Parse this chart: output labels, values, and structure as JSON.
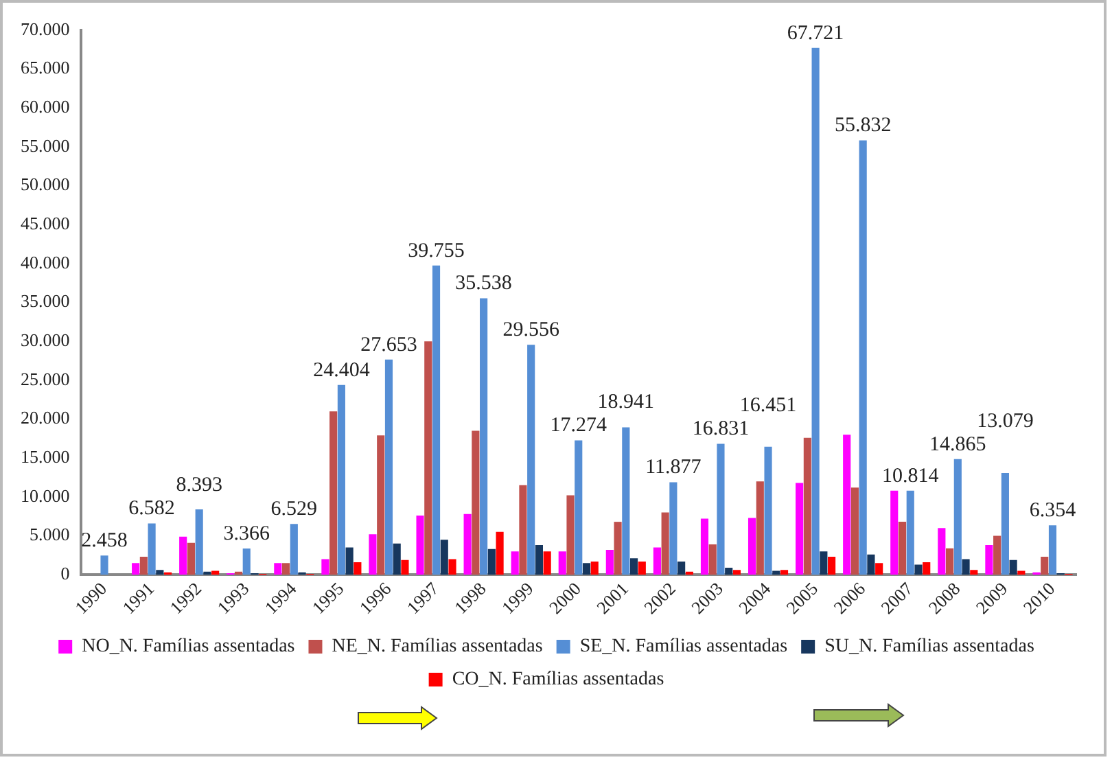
{
  "chart_data": {
    "type": "bar",
    "categories": [
      "1990",
      "1991",
      "1992",
      "1993",
      "1994",
      "1995",
      "1996",
      "1997",
      "1998",
      "1999",
      "2000",
      "2001",
      "2002",
      "2003",
      "2004",
      "2005",
      "2006",
      "2007",
      "2008",
      "2009",
      "2010"
    ],
    "series": [
      {
        "name": "NO_N. Famílias assentadas",
        "color": "#ff00ff",
        "values": [
          0,
          1500,
          4900,
          200,
          1500,
          2000,
          5200,
          7600,
          7800,
          3000,
          3000,
          3200,
          3500,
          7200,
          7300,
          11800,
          18000,
          10800,
          6000,
          3800,
          300
        ]
      },
      {
        "name": "NE_N. Famílias assentadas",
        "color": "#c0504d",
        "values": [
          0,
          2300,
          4100,
          400,
          1500,
          21000,
          17900,
          30000,
          18500,
          11500,
          10200,
          6800,
          8000,
          3900,
          12000,
          17600,
          11200,
          6800,
          3400,
          5000,
          2300
        ]
      },
      {
        "name": "SE_N. Famílias assentadas",
        "color": "#558ed5",
        "values": [
          2458,
          6582,
          8393,
          3366,
          6529,
          24404,
          27653,
          39755,
          35538,
          29556,
          17274,
          18941,
          11877,
          16831,
          16451,
          67721,
          55832,
          10814,
          14865,
          13079,
          6354
        ],
        "value_labels": [
          "2.458",
          "6.582",
          "8.393",
          "3.366",
          "6.529",
          "24.404",
          "27.653",
          "39.755",
          "35.538",
          "29.556",
          "17.274",
          "18.941",
          "11.877",
          "16.831",
          "16.451",
          "67.721",
          "55.832",
          "10.814",
          "14.865",
          "13.079",
          "6.354"
        ]
      },
      {
        "name": "SU_N. Famílias assentadas",
        "color": "#17375e",
        "values": [
          0,
          600,
          400,
          200,
          300,
          3500,
          4000,
          4500,
          3300,
          3800,
          1500,
          2100,
          1700,
          900,
          500,
          3000,
          2600,
          1300,
          2000,
          1900,
          200
        ]
      },
      {
        "name": "CO_N. Famílias assentadas",
        "color": "#ff0000",
        "values": [
          0,
          300,
          500,
          100,
          100,
          1600,
          1900,
          2000,
          5500,
          3000,
          1700,
          1700,
          400,
          600,
          600,
          2300,
          1500,
          1600,
          600,
          500,
          100
        ]
      }
    ],
    "ylim": [
      0,
      70000
    ],
    "yticks": [
      {
        "value": 0,
        "label": "0"
      },
      {
        "value": 5000,
        "label": "5.000"
      },
      {
        "value": 10000,
        "label": "10.000"
      },
      {
        "value": 15000,
        "label": "15.000"
      },
      {
        "value": 20000,
        "label": "20.000"
      },
      {
        "value": 25000,
        "label": "25.000"
      },
      {
        "value": 30000,
        "label": "30.000"
      },
      {
        "value": 35000,
        "label": "35.000"
      },
      {
        "value": 40000,
        "label": "40.000"
      },
      {
        "value": 45000,
        "label": "45.000"
      },
      {
        "value": 50000,
        "label": "50.000"
      },
      {
        "value": 55000,
        "label": "55.000"
      },
      {
        "value": 60000,
        "label": "60.000"
      },
      {
        "value": 65000,
        "label": "65.000"
      },
      {
        "value": 70000,
        "label": "70.000"
      }
    ],
    "grid": false,
    "legend": "bottom"
  }
}
